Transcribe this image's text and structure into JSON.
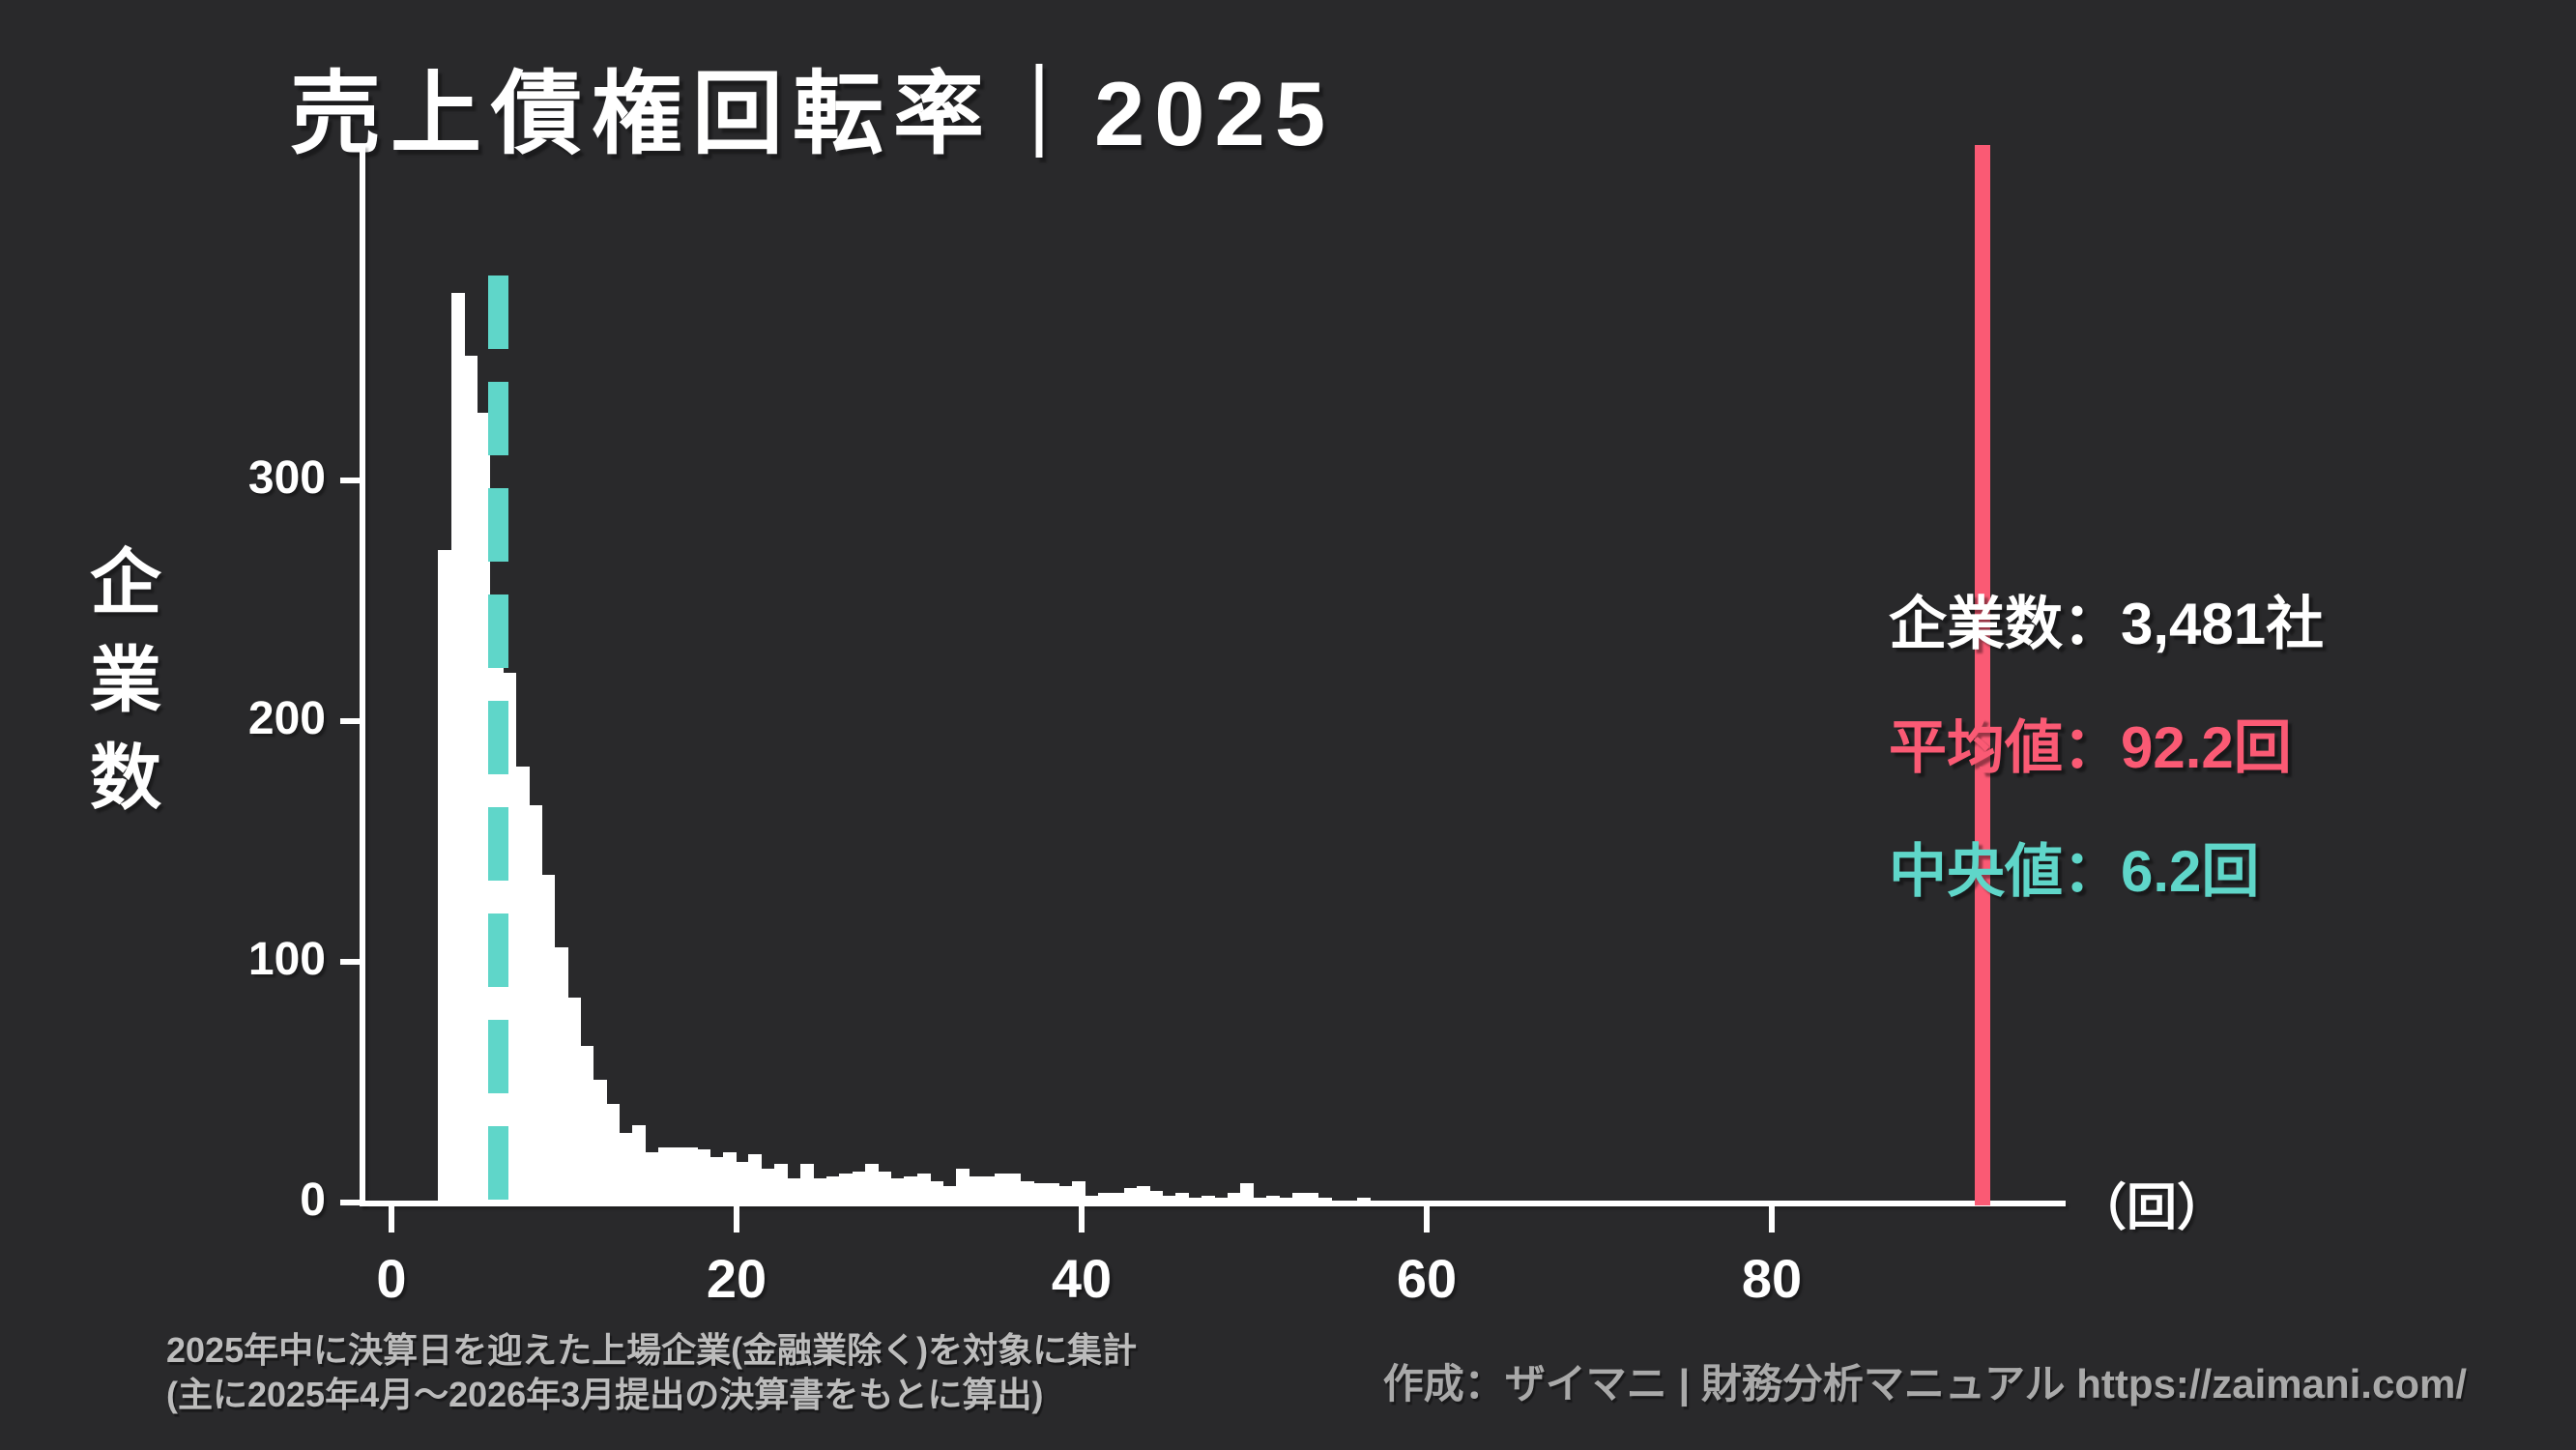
{
  "title": {
    "text": "売上債権回転率｜2025"
  },
  "y_axis": {
    "label": "企\n業\n数",
    "tick_labels": [
      "0",
      "100",
      "200",
      "300"
    ]
  },
  "x_axis": {
    "tick_labels": [
      "0",
      "20",
      "40",
      "60",
      "80"
    ],
    "unit": "（回）"
  },
  "stats": {
    "companies_label": "企業数：",
    "companies_value": "3,481社",
    "mean_label": "平均値：",
    "mean_value": "92.2回",
    "median_label": "中央値：",
    "median_value": "6.2回"
  },
  "footnote": "2025年中に決算日を迎えた上場企業(金融業除く)を対象に集計\n(主に2025年4月〜2026年3月提出の決算書をもとに算出)",
  "credit": "作成：ザイマニ | 財務分析マニュアル https://zaimani.com/",
  "colors": {
    "background": "#29292b",
    "bar": "#ffffff",
    "mean_line": "#fa5a74",
    "median_line": "#5fd6c9",
    "text": "#ffffff",
    "footnote": "#bcbcbc",
    "credit": "#a9a9a9"
  },
  "chart_data": {
    "type": "bar",
    "subtype": "histogram",
    "title": "売上債権回転率｜2025",
    "xlabel": "（回）",
    "ylabel": "企業数",
    "legend": "none",
    "grid": false,
    "x_ticks": [
      0,
      20,
      40,
      60,
      80
    ],
    "y_ticks": [
      0,
      100,
      200,
      300
    ],
    "xlim": [
      -1.85,
      97.0
    ],
    "ylim": [
      0,
      440
    ],
    "bin_start": 2.7,
    "bin_width": 0.75,
    "counts": [
      271,
      378,
      352,
      328,
      252,
      220,
      181,
      165,
      136,
      106,
      85,
      65,
      51,
      41,
      29,
      32,
      21,
      23,
      23,
      23,
      22,
      19,
      21,
      17,
      20,
      14,
      16,
      10,
      16,
      10,
      11,
      12,
      13,
      16,
      13,
      10,
      11,
      12,
      9,
      7,
      14,
      11,
      11,
      12,
      12,
      9,
      8,
      8,
      7,
      9,
      3,
      4,
      4,
      6,
      7,
      5,
      3,
      4,
      2,
      3,
      2,
      4,
      8,
      2,
      3,
      2,
      4,
      4,
      2,
      1,
      1,
      2,
      1,
      1,
      1,
      1,
      1
    ],
    "mean": 92.2,
    "median": 6.2,
    "total_companies": 3481,
    "annotations": [
      "企業数：3,481社",
      "平均値：92.2回",
      "中央値：6.2回"
    ]
  }
}
